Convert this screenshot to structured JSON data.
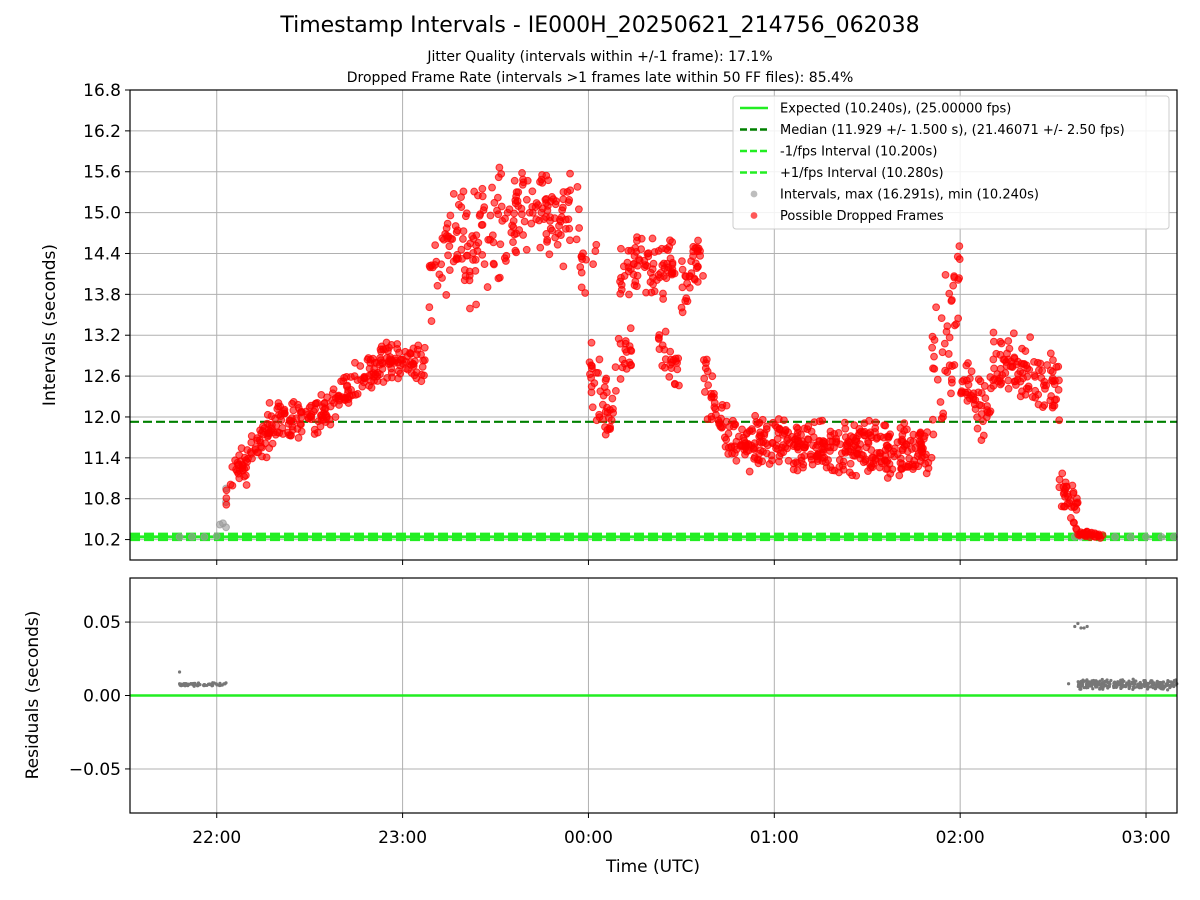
{
  "figure": {
    "title": "Timestamp Intervals - IE000H_20250621_214756_062038",
    "subtitle_1": "Jitter Quality (intervals within +/-1 frame): 17.1%",
    "subtitle_2": "Dropped Frame Rate (intervals >1 frames late within 50 FF files): 85.4%"
  },
  "colors": {
    "expected": "#22ee22",
    "median": "#008000",
    "interval_band": "#22ee22",
    "intervals": "#9a9a9a",
    "dropped": "#ff0000",
    "residuals": "#777777",
    "grid": "#b0b0b0"
  },
  "chart_data": [
    {
      "type": "scatter",
      "ylabel": "Intervals (seconds)",
      "xlabel": "",
      "x_unit": "time (UTC), runs 21:32 to 03:10",
      "xlim": [
        "21:32",
        "03:10"
      ],
      "ylim": [
        9.9,
        16.8
      ],
      "yticks": [
        "10.2",
        "10.8",
        "11.4",
        "12.0",
        "12.6",
        "13.2",
        "13.8",
        "14.4",
        "15.0",
        "15.6",
        "16.2",
        "16.8"
      ],
      "xticks": [
        "22:00",
        "23:00",
        "00:00",
        "01:00",
        "02:00",
        "03:00"
      ],
      "grid": true,
      "legend_position": "top-right",
      "lines": [
        {
          "name": "Expected (10.240s), (25.00000 fps)",
          "y": 10.24,
          "style": "solid",
          "role": "expected"
        },
        {
          "name": "Median (11.929 +/- 1.500 s), (21.46071 +/- 2.50 fps)",
          "y": 11.929,
          "style": "dashed",
          "role": "median"
        },
        {
          "name": "-1/fps Interval (10.200s)",
          "y": 10.2,
          "style": "dashed",
          "role": "band"
        },
        {
          "name": "+1/fps Interval (10.280s)",
          "y": 10.28,
          "style": "dashed",
          "role": "band"
        }
      ],
      "series": [
        {
          "name": "Intervals, max (16.291s), min (10.240s)",
          "role": "intervals",
          "points": [
            [
              "21:48",
              10.24
            ],
            [
              "21:52",
              10.24
            ],
            [
              "21:56",
              10.24
            ],
            [
              "22:00",
              10.25
            ],
            [
              "22:01",
              10.42
            ],
            [
              "22:02",
              10.44
            ],
            [
              "22:03",
              10.75
            ],
            [
              "22:03",
              10.95
            ],
            [
              "22:03",
              10.38
            ],
            [
              "02:37",
              10.24
            ],
            [
              "02:39",
              10.24
            ],
            [
              "02:45",
              10.24
            ],
            [
              "02:50",
              10.24
            ],
            [
              "02:55",
              10.24
            ],
            [
              "03:00",
              10.24
            ],
            [
              "03:05",
              10.24
            ],
            [
              "03:09",
              10.24
            ]
          ]
        },
        {
          "name": "Possible Dropped Frames",
          "role": "dropped",
          "segments": [
            {
              "start": "22:03",
              "end": "22:20",
              "y_start": 10.9,
              "y_end": 12.05,
              "spread": 0.45,
              "count": 80
            },
            {
              "start": "22:20",
              "end": "22:35",
              "y_start": 12.0,
              "y_end": 12.0,
              "spread": 0.35,
              "count": 70
            },
            {
              "start": "22:35",
              "end": "22:55",
              "y_start": 12.1,
              "y_end": 12.85,
              "spread": 0.35,
              "count": 90
            },
            {
              "start": "22:55",
              "end": "23:08",
              "y_start": 12.85,
              "y_end": 12.8,
              "spread": 0.3,
              "count": 60
            },
            {
              "start": "23:08",
              "end": "23:20",
              "y_start": 13.9,
              "y_end": 14.9,
              "spread": 0.8,
              "count": 45
            },
            {
              "start": "23:20",
              "end": "23:40",
              "y_start": 14.4,
              "y_end": 15.2,
              "spread": 1.0,
              "count": 90
            },
            {
              "start": "23:40",
              "end": "23:57",
              "y_start": 15.1,
              "y_end": 14.8,
              "spread": 0.8,
              "count": 70
            },
            {
              "start": "23:57",
              "end": "00:03",
              "y_start": 14.2,
              "y_end": 14.4,
              "spread": 0.5,
              "count": 12
            },
            {
              "start": "00:00",
              "end": "00:08",
              "y_start": 12.7,
              "y_end": 12.0,
              "spread": 0.6,
              "count": 40
            },
            {
              "start": "00:08",
              "end": "00:14",
              "y_start": 12.6,
              "y_end": 13.1,
              "spread": 0.5,
              "count": 20
            },
            {
              "start": "00:10",
              "end": "00:20",
              "y_start": 14.1,
              "y_end": 14.3,
              "spread": 0.5,
              "count": 40
            },
            {
              "start": "00:20",
              "end": "00:28",
              "y_start": 14.2,
              "y_end": 14.2,
              "spread": 0.5,
              "count": 40
            },
            {
              "start": "00:22",
              "end": "00:30",
              "y_start": 13.1,
              "y_end": 12.7,
              "spread": 0.4,
              "count": 25
            },
            {
              "start": "00:30",
              "end": "00:37",
              "y_start": 13.9,
              "y_end": 14.3,
              "spread": 0.5,
              "count": 35
            },
            {
              "start": "00:37",
              "end": "00:45",
              "y_start": 12.6,
              "y_end": 11.7,
              "spread": 0.5,
              "count": 35
            },
            {
              "start": "00:45",
              "end": "01:50",
              "y_start": 11.6,
              "y_end": 11.5,
              "spread": 0.45,
              "count": 380
            },
            {
              "start": "01:50",
              "end": "02:00",
              "y_start": 12.2,
              "y_end": 13.8,
              "spread": 1.2,
              "count": 45
            },
            {
              "start": "02:00",
              "end": "02:10",
              "y_start": 12.4,
              "y_end": 12.1,
              "spread": 0.6,
              "count": 45
            },
            {
              "start": "02:10",
              "end": "02:25",
              "y_start": 12.9,
              "y_end": 12.6,
              "spread": 0.6,
              "count": 70
            },
            {
              "start": "02:25",
              "end": "02:32",
              "y_start": 12.6,
              "y_end": 12.4,
              "spread": 0.5,
              "count": 35
            },
            {
              "start": "02:32",
              "end": "02:38",
              "y_start": 11.0,
              "y_end": 10.6,
              "spread": 0.35,
              "count": 35
            },
            {
              "start": "02:38",
              "end": "02:46",
              "y_start": 10.3,
              "y_end": 10.25,
              "spread": 0.05,
              "count": 30
            }
          ]
        }
      ]
    },
    {
      "type": "scatter",
      "ylabel": "Residuals (seconds)",
      "xlabel": "Time (UTC)",
      "xlim": [
        "21:32",
        "03:10"
      ],
      "ylim": [
        -0.08,
        0.08
      ],
      "yticks": [
        "−0.05",
        "0.00",
        "0.05"
      ],
      "ytick_values": [
        -0.05,
        0.0,
        0.05
      ],
      "xticks": [
        "22:00",
        "23:00",
        "00:00",
        "01:00",
        "02:00",
        "03:00"
      ],
      "grid": true,
      "baseline": 0.0,
      "series": [
        {
          "role": "residuals",
          "segments": [
            {
              "start": "21:48",
              "end": "22:03",
              "y": 0.0075,
              "spread": 0.0015,
              "count": 60
            },
            {
              "start": "02:38",
              "end": "03:10",
              "y": 0.0075,
              "spread": 0.004,
              "count": 260
            }
          ],
          "points": [
            [
              "21:48",
              0.016
            ],
            [
              "02:35",
              0.008
            ],
            [
              "02:37",
              0.047
            ],
            [
              "02:38",
              0.049
            ],
            [
              "02:39",
              0.046
            ],
            [
              "02:40",
              0.046
            ],
            [
              "02:41",
              0.047
            ]
          ]
        }
      ]
    }
  ]
}
